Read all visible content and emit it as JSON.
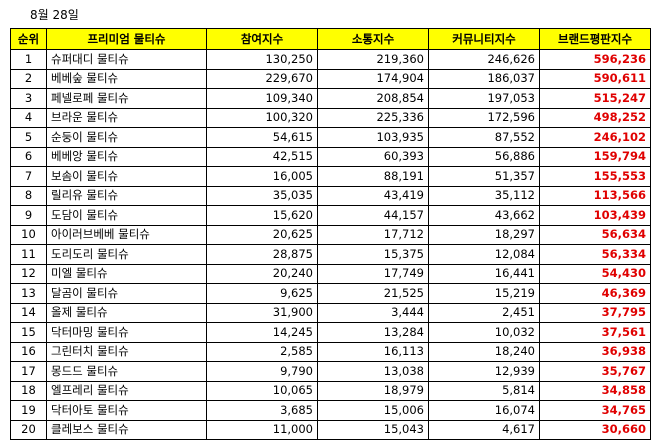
{
  "date": "8월 28일",
  "table": {
    "headers": [
      "순위",
      "프리미엄 물티슈",
      "참여지수",
      "소통지수",
      "커뮤니티지수",
      "브랜드평판지수"
    ],
    "rows": [
      {
        "rank": "1",
        "name": "슈퍼대디 물티슈",
        "participation": "130,250",
        "communication": "219,360",
        "community": "246,626",
        "brand": "596,236"
      },
      {
        "rank": "2",
        "name": "베베숲 물티슈",
        "participation": "229,670",
        "communication": "174,904",
        "community": "186,037",
        "brand": "590,611"
      },
      {
        "rank": "3",
        "name": "페넬로페 물티슈",
        "participation": "109,340",
        "communication": "208,854",
        "community": "197,053",
        "brand": "515,247"
      },
      {
        "rank": "4",
        "name": "브라운 물티슈",
        "participation": "100,320",
        "communication": "225,336",
        "community": "172,596",
        "brand": "498,252"
      },
      {
        "rank": "5",
        "name": "순둥이 물티슈",
        "participation": "54,615",
        "communication": "103,935",
        "community": "87,552",
        "brand": "246,102"
      },
      {
        "rank": "6",
        "name": "베베앙 물티슈",
        "participation": "42,515",
        "communication": "60,393",
        "community": "56,886",
        "brand": "159,794"
      },
      {
        "rank": "7",
        "name": "보솜이 물티슈",
        "participation": "16,005",
        "communication": "88,191",
        "community": "51,357",
        "brand": "155,553"
      },
      {
        "rank": "8",
        "name": "릴리유 물티슈",
        "participation": "35,035",
        "communication": "43,419",
        "community": "35,112",
        "brand": "113,566"
      },
      {
        "rank": "9",
        "name": "도담이 물티슈",
        "participation": "15,620",
        "communication": "44,157",
        "community": "43,662",
        "brand": "103,439"
      },
      {
        "rank": "10",
        "name": "아이러브베베 물티슈",
        "participation": "20,625",
        "communication": "17,712",
        "community": "18,297",
        "brand": "56,634"
      },
      {
        "rank": "11",
        "name": "도리도리 물티슈",
        "participation": "28,875",
        "communication": "15,375",
        "community": "12,084",
        "brand": "56,334"
      },
      {
        "rank": "12",
        "name": "미엘 물티슈",
        "participation": "20,240",
        "communication": "17,749",
        "community": "16,441",
        "brand": "54,430"
      },
      {
        "rank": "13",
        "name": "달곰이 물티슈",
        "participation": "9,625",
        "communication": "21,525",
        "community": "15,219",
        "brand": "46,369"
      },
      {
        "rank": "14",
        "name": "올제 물티슈",
        "participation": "31,900",
        "communication": "3,444",
        "community": "2,451",
        "brand": "37,795"
      },
      {
        "rank": "15",
        "name": "닥터마밍 물티슈",
        "participation": "14,245",
        "communication": "13,284",
        "community": "10,032",
        "brand": "37,561"
      },
      {
        "rank": "16",
        "name": "그린터치 물티슈",
        "participation": "2,585",
        "communication": "16,113",
        "community": "18,240",
        "brand": "36,938"
      },
      {
        "rank": "17",
        "name": "몽드드 물티슈",
        "participation": "9,790",
        "communication": "13,038",
        "community": "12,939",
        "brand": "35,767"
      },
      {
        "rank": "18",
        "name": "엘프레리 물티슈",
        "participation": "10,065",
        "communication": "18,979",
        "community": "5,814",
        "brand": "34,858"
      },
      {
        "rank": "19",
        "name": "닥터아토 물티슈",
        "participation": "3,685",
        "communication": "15,006",
        "community": "16,074",
        "brand": "34,765"
      },
      {
        "rank": "20",
        "name": "클레보스 물티슈",
        "participation": "11,000",
        "communication": "15,043",
        "community": "4,617",
        "brand": "30,660"
      }
    ]
  },
  "colors": {
    "header_background": "#ffff00",
    "brand_index_text": "#e00000"
  }
}
